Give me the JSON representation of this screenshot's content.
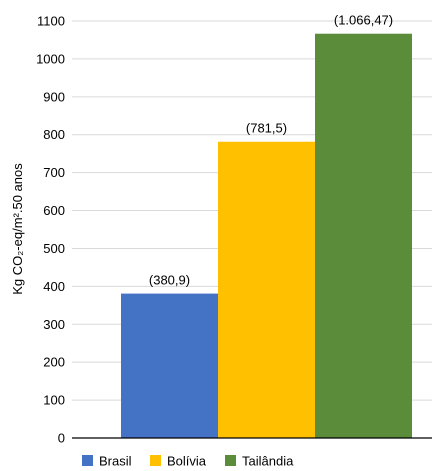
{
  "chart_data": {
    "type": "bar",
    "ylabel": "Kg CO₂-eq/m².50 anos",
    "ylim": [
      0,
      1100
    ],
    "yticks": [
      0,
      100,
      200,
      300,
      400,
      500,
      600,
      700,
      800,
      900,
      1000,
      1100
    ],
    "grid": true,
    "legend_position": "bottom",
    "series": [
      {
        "name": "Brasil",
        "value": 380.9,
        "label": "(380,9)",
        "color": "#4472C4"
      },
      {
        "name": "Bolívia",
        "value": 781.5,
        "label": "(781,5)",
        "color": "#FFC000"
      },
      {
        "name": "Tailândia",
        "value": 1066.47,
        "label": "(1.066,47)",
        "color": "#5B8C3A"
      }
    ]
  }
}
